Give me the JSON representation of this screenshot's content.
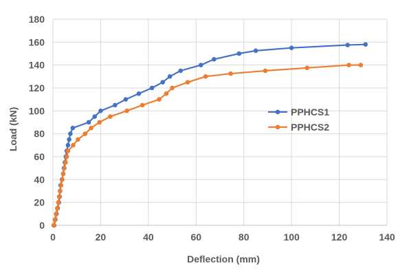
{
  "chart_data": {
    "type": "line",
    "title": "",
    "xlabel": "Deflection (mm)",
    "ylabel": "Load (kN)",
    "xlim": [
      0,
      140
    ],
    "ylim": [
      0,
      180
    ],
    "xticks": [
      0,
      20,
      40,
      60,
      80,
      100,
      120,
      140
    ],
    "yticks": [
      0,
      20,
      40,
      60,
      80,
      100,
      120,
      140,
      160,
      180
    ],
    "grid": true,
    "legend_position": "right",
    "series": [
      {
        "name": "PPHCS1",
        "color": "#4472C4",
        "points": [
          [
            0.5,
            0
          ],
          [
            1.0,
            5
          ],
          [
            1.5,
            10
          ],
          [
            2.0,
            15
          ],
          [
            2.5,
            20
          ],
          [
            2.8,
            25
          ],
          [
            3.0,
            30
          ],
          [
            3.2,
            35
          ],
          [
            3.8,
            40
          ],
          [
            4.3,
            45
          ],
          [
            4.6,
            50
          ],
          [
            5.0,
            55
          ],
          [
            5.4,
            60
          ],
          [
            5.8,
            65
          ],
          [
            6.3,
            70
          ],
          [
            6.8,
            75
          ],
          [
            7.3,
            80
          ],
          [
            8.3,
            85
          ],
          [
            15.0,
            90
          ],
          [
            17.5,
            95
          ],
          [
            20.0,
            100
          ],
          [
            26.0,
            105
          ],
          [
            30.5,
            110
          ],
          [
            36.0,
            115
          ],
          [
            41.5,
            120
          ],
          [
            46.0,
            125
          ],
          [
            49.0,
            130
          ],
          [
            53.5,
            135
          ],
          [
            62.0,
            140
          ],
          [
            67.5,
            145
          ],
          [
            78.0,
            150
          ],
          [
            85.0,
            152.5
          ],
          [
            100.0,
            155
          ],
          [
            123.5,
            157.5
          ],
          [
            131.0,
            158
          ]
        ]
      },
      {
        "name": "PPHCS2",
        "color": "#ED7D31",
        "points": [
          [
            0.3,
            0
          ],
          [
            0.8,
            5
          ],
          [
            1.3,
            10
          ],
          [
            1.8,
            15
          ],
          [
            2.3,
            20
          ],
          [
            2.6,
            25
          ],
          [
            3.0,
            30
          ],
          [
            3.4,
            35
          ],
          [
            3.9,
            40
          ],
          [
            4.3,
            45
          ],
          [
            4.8,
            50
          ],
          [
            5.3,
            55
          ],
          [
            5.8,
            60
          ],
          [
            6.3,
            65
          ],
          [
            8.5,
            70
          ],
          [
            10.5,
            75
          ],
          [
            13.5,
            80
          ],
          [
            16.0,
            85
          ],
          [
            19.5,
            90
          ],
          [
            24.0,
            95
          ],
          [
            31.0,
            100
          ],
          [
            37.5,
            105
          ],
          [
            44.5,
            110
          ],
          [
            47.5,
            115
          ],
          [
            50.0,
            120
          ],
          [
            56.5,
            125
          ],
          [
            64.0,
            130
          ],
          [
            74.5,
            132.5
          ],
          [
            89.0,
            135
          ],
          [
            106.5,
            137.5
          ],
          [
            124.0,
            140
          ],
          [
            129.0,
            140
          ]
        ]
      }
    ]
  }
}
